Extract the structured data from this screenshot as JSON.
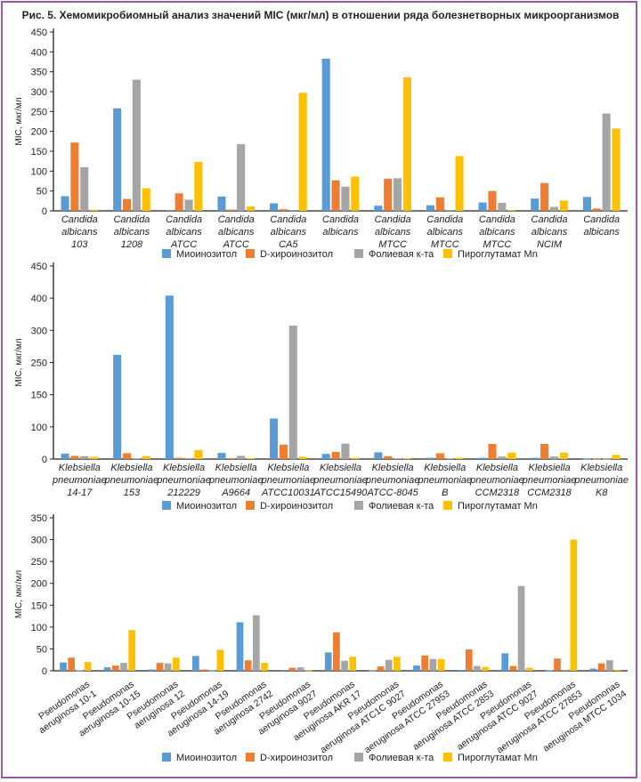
{
  "title": "Рис. 5. Хемомикробиомный анализ значений MIC (мкг/мл) в отношении ряда болезнетворных микроорганизмов",
  "legend": [
    {
      "name": "Миоинозитол",
      "color": "#5b9bd5"
    },
    {
      "name": "D-хироинозитол",
      "color": "#ed7d31"
    },
    {
      "name": "Фолиевая к-та",
      "color": "#a5a5a5"
    },
    {
      "name": "Пироглутамат Mn",
      "color": "#ffc000"
    }
  ],
  "chart_data": [
    {
      "type": "bar",
      "title": "",
      "xlabel": "",
      "ylabel": "MIC, мкг/мл",
      "ylim": [
        0,
        450
      ],
      "yticks": [
        "0",
        "50",
        "100",
        "150",
        "200",
        "250",
        "300",
        "350",
        "400",
        "450"
      ],
      "ytick_values": [
        0,
        50,
        100,
        150,
        200,
        250,
        300,
        350,
        400,
        450
      ],
      "legend_position": "bottom",
      "grid": false,
      "label_style": "stacked",
      "categories": [
        [
          "Candida",
          "albicans",
          "103"
        ],
        [
          "Candida",
          "albicans",
          "1208"
        ],
        [
          "Candida",
          "albicans",
          "ATCC"
        ],
        [
          "Candida",
          "albicans",
          "ATCC"
        ],
        [
          "Candida",
          "albicans",
          "CA5"
        ],
        [
          "Candida",
          "albicans"
        ],
        [
          "Candida",
          "albicans",
          "MTCC"
        ],
        [
          "Candida",
          "albicans",
          "MTCC"
        ],
        [
          "Candida",
          "albicans",
          "MTCC"
        ],
        [
          "Candida",
          "albicans",
          "NCIM"
        ],
        [
          "Candida",
          "albicans"
        ]
      ],
      "series": [
        {
          "name": "Миоинозитол",
          "values": [
            37,
            258,
            2,
            36,
            19,
            383,
            13,
            14,
            21,
            31,
            35
          ]
        },
        {
          "name": "D-хироинозитол",
          "values": [
            172,
            30,
            44,
            3,
            4,
            77,
            81,
            34,
            50,
            70,
            6
          ]
        },
        {
          "name": "Фолиевая к-та",
          "values": [
            110,
            330,
            28,
            168,
            2,
            61,
            82,
            2,
            20,
            10,
            245
          ]
        },
        {
          "name": "Пироглутамат Mn",
          "values": [
            3,
            57,
            123,
            11,
            297,
            86,
            336,
            138,
            2,
            26,
            207
          ]
        }
      ]
    },
    {
      "type": "bar",
      "title": "",
      "xlabel": "",
      "ylabel": "MIC, мкг/мл",
      "ylim": [
        0,
        450
      ],
      "yticks": [
        "0",
        "100",
        "150",
        "250",
        "300",
        "400",
        "450"
      ],
      "ytick_values": [
        0,
        100,
        150,
        250,
        300,
        400,
        450
      ],
      "legend_position": "bottom",
      "grid": false,
      "label_style": "stacked",
      "categories": [
        [
          "Klebsiella",
          "pneumoniae",
          "14-17"
        ],
        [
          "Klebsiella",
          "pneumoniae",
          "153"
        ],
        [
          "Klebsiella",
          "pneumoniae",
          "212229"
        ],
        [
          "Klebsiella",
          "pneumoniae",
          "A9664"
        ],
        [
          "Klebsiella",
          "pneumoniae",
          "ATCC10031"
        ],
        [
          "Klebsiella",
          "pneumoniae",
          "ATCC15490"
        ],
        [
          "Klebsiella",
          "pneumoniae",
          "ATCC-8045"
        ],
        [
          "Klebsiella",
          "pneumoniae",
          "B"
        ],
        [
          "Klebsiella",
          "pneumoniae",
          "CCM2318"
        ],
        [
          "Klebsiella",
          "pneumoniae",
          "CCM2318"
        ],
        [
          "Klebsiella",
          "pneumoniae",
          "K8"
        ]
      ],
      "series": [
        {
          "name": "Миоинозитол",
          "values": [
            17,
            262,
            404,
            19,
            113,
            16,
            21,
            4,
            4,
            4,
            1
          ]
        },
        {
          "name": "D-хироинозитол",
          "values": [
            10,
            18,
            4,
            3,
            45,
            22,
            9,
            18,
            47,
            47,
            1
          ]
        },
        {
          "name": "Фолиевая к-та",
          "values": [
            9,
            2,
            3,
            10,
            315,
            48,
            2,
            2,
            8,
            8,
            1
          ]
        },
        {
          "name": "Пироглутамат Mn",
          "values": [
            7,
            9,
            28,
            3,
            7,
            4,
            2,
            4,
            20,
            20,
            13
          ]
        }
      ]
    },
    {
      "type": "bar",
      "title": "",
      "xlabel": "",
      "ylabel": "MIC, мкг/мл",
      "ylim": [
        0,
        350
      ],
      "yticks": [
        "0",
        "50",
        "100",
        "150",
        "200",
        "250",
        "300",
        "350"
      ],
      "ytick_values": [
        0,
        50,
        100,
        150,
        200,
        250,
        300,
        350
      ],
      "legend_position": "bottom",
      "grid": false,
      "label_style": "rotated",
      "categories": [
        [
          "Pseudomonas",
          "aeruginosa 10-1"
        ],
        [
          "Pseudomonas",
          "aeruginosa 10-15"
        ],
        [
          "Pseudomonas",
          "aeruginosa 12"
        ],
        [
          "Pseudomonas",
          "aeruginosa 14-19"
        ],
        [
          "Pseudomonas",
          "aeruginosa 2742"
        ],
        [
          "Pseudomonas",
          "aeruginosa 9027"
        ],
        [
          "Pseudomonas",
          "aeruginosa AKR 17"
        ],
        [
          "Pseudomonas",
          "aeruginosa ATC1C 9027"
        ],
        [
          "Pseudomonas",
          "aeruginosa ATCC 27953"
        ],
        [
          "Pseudomonas",
          "aeruginosa ATCC 2853"
        ],
        [
          "Pseudomonas",
          "aeruginosa ATCC 9027"
        ],
        [
          "Pseudomonas",
          "aeruginosa ATCC 27853"
        ],
        [
          "Pseudomonas",
          "aeruginosa MTCC 1034"
        ]
      ],
      "series": [
        {
          "name": "Миоинозитол",
          "values": [
            19,
            8,
            3,
            34,
            111,
            2,
            42,
            1,
            12,
            2,
            40,
            1,
            5
          ]
        },
        {
          "name": "D-хироинозитол",
          "values": [
            30,
            12,
            18,
            3,
            24,
            7,
            88,
            10,
            35,
            49,
            11,
            28,
            17
          ]
        },
        {
          "name": "Фолиевая к-та",
          "values": [
            1,
            18,
            17,
            1,
            127,
            8,
            23,
            25,
            27,
            11,
            194,
            2,
            24
          ]
        },
        {
          "name": "Пироглутамат Mn",
          "values": [
            20,
            93,
            30,
            48,
            18,
            1,
            32,
            32,
            27,
            9,
            7,
            300,
            2
          ]
        }
      ]
    }
  ]
}
